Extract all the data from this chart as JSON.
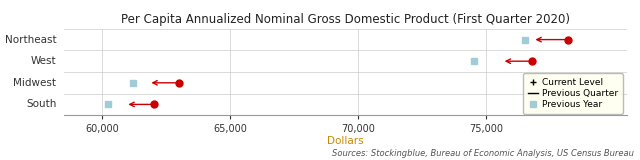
{
  "title": "Per Capita Annualized Nominal Gross Domestic Product (First Quarter 2020)",
  "regions": [
    "Northeast",
    "West",
    "Midwest",
    "South"
  ],
  "current_level": [
    78200,
    76800,
    63000,
    62000
  ],
  "previous_quarter": [
    76800,
    75600,
    61800,
    60900
  ],
  "previous_year": [
    76500,
    74500,
    61200,
    60200
  ],
  "xlim": [
    58500,
    80500
  ],
  "xticks": [
    60000,
    65000,
    70000,
    75000
  ],
  "xlabel": "Dollars",
  "xlabel_color": "#cc8800",
  "source_text": "Sources: Stockingblue, Bureau of Economic Analysis, US Census Bureau",
  "dot_color": "#cc0000",
  "prev_year_color": "#a0ccd8",
  "arrow_color": "#cc0000",
  "bg_color": "#ffffff",
  "grid_color": "#cccccc",
  "legend_bg": "#ffffee",
  "title_fontsize": 8.5,
  "tick_fontsize": 7,
  "xlabel_fontsize": 7.5,
  "source_fontsize": 6.0,
  "region_fontsize": 7.5,
  "legend_fontsize": 6.5
}
